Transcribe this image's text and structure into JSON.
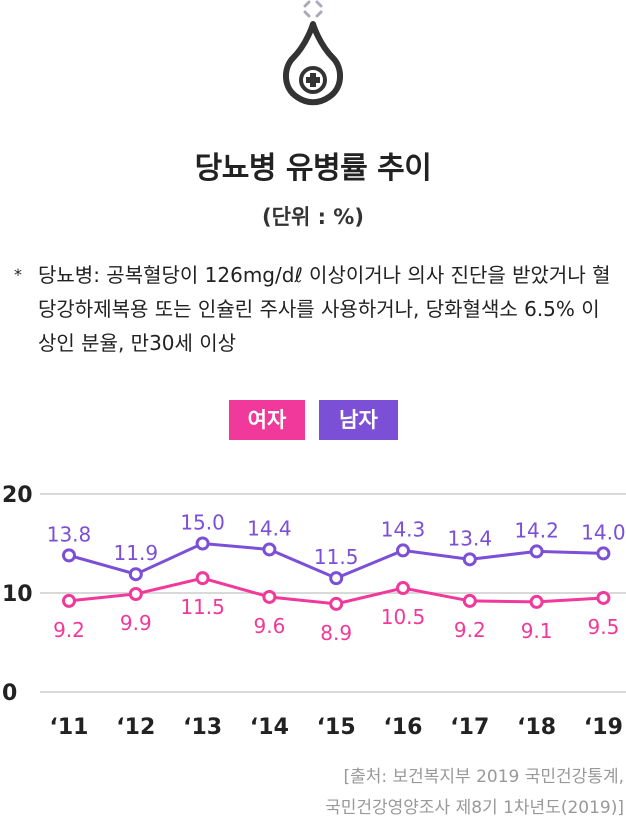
{
  "header": {
    "title": "당뇨병 유병률 추이",
    "unit": "(단위 : %)"
  },
  "note": {
    "marker": "*",
    "text": "당뇨병: 공복혈당이 126mg/dℓ 이상이거나 의사 진단을 받았거나 혈당강하제복용 또는 인슐린 주사를 사용하거나, 당화혈색소 6.5% 이상인 분율, 만30세 이상"
  },
  "legend": {
    "female": "여자",
    "male": "남자"
  },
  "colors": {
    "female": "#f0399a",
    "male": "#7b4fd6",
    "grid": "#d9d9d9",
    "icon": "#333333"
  },
  "source": {
    "line1": "[출처: 보건복지부 2019 국민건강통계,",
    "line2": "국민건강영양조사 제8기 1차년도(2019)]"
  },
  "chart_data": {
    "type": "line",
    "title": "당뇨병 유병률 추이",
    "xlabel": "",
    "ylabel": "",
    "categories": [
      "‘11",
      "‘12",
      "‘13",
      "‘14",
      "‘15",
      "‘16",
      "‘17",
      "‘18",
      "‘19"
    ],
    "yticks": [
      "0",
      "10",
      "20"
    ],
    "ylim": [
      0,
      20
    ],
    "grid": true,
    "legend_position": "top-center",
    "series": [
      {
        "name": "남자",
        "key": "male",
        "values": [
          13.8,
          11.9,
          15.0,
          14.4,
          11.5,
          14.3,
          13.4,
          14.2,
          14.0
        ],
        "labels": [
          "13.8",
          "11.9",
          "15.0",
          "14.4",
          "11.5",
          "14.3",
          "13.4",
          "14.2",
          "14.0"
        ]
      },
      {
        "name": "여자",
        "key": "female",
        "values": [
          9.2,
          9.9,
          11.5,
          9.6,
          8.9,
          10.5,
          9.2,
          9.1,
          9.5
        ],
        "labels": [
          "9.2",
          "9.9",
          "11.5",
          "9.6",
          "8.9",
          "10.5",
          "9.2",
          "9.1",
          "9.5"
        ]
      }
    ]
  }
}
